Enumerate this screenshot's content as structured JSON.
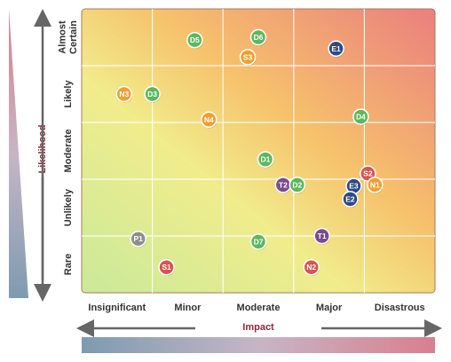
{
  "chart_data": {
    "type": "scatter",
    "title": "",
    "xlabel": "Impact",
    "ylabel": "Likelihood",
    "x_categories": [
      "Insignificant",
      "Minor",
      "Moderate",
      "Major",
      "Disastrous"
    ],
    "y_categories": [
      "Rare",
      "Unlikely",
      "Moderate",
      "Likely",
      "Almost Certain"
    ],
    "xlim": [
      0,
      5
    ],
    "ylim": [
      0,
      5
    ],
    "grid": true,
    "legend": "none",
    "colors": {
      "green": "#5cb85c",
      "orange": "#f0a030",
      "red": "#d9534f",
      "navy": "#2e4a86",
      "purple": "#7b4a8f",
      "gray": "#8e8e8e"
    },
    "points": [
      {
        "label": "D5",
        "x": 1.6,
        "y": 4.45,
        "color": "green"
      },
      {
        "label": "D6",
        "x": 2.5,
        "y": 4.5,
        "color": "green"
      },
      {
        "label": "S3",
        "x": 2.35,
        "y": 4.15,
        "color": "orange"
      },
      {
        "label": "E1",
        "x": 3.6,
        "y": 4.3,
        "color": "navy"
      },
      {
        "label": "N3",
        "x": 0.6,
        "y": 3.5,
        "color": "orange"
      },
      {
        "label": "D3",
        "x": 1.0,
        "y": 3.5,
        "color": "green"
      },
      {
        "label": "N4",
        "x": 1.8,
        "y": 3.05,
        "color": "orange"
      },
      {
        "label": "D4",
        "x": 3.95,
        "y": 3.1,
        "color": "green"
      },
      {
        "label": "D1",
        "x": 2.6,
        "y": 2.35,
        "color": "green"
      },
      {
        "label": "S2",
        "x": 4.05,
        "y": 2.1,
        "color": "red"
      },
      {
        "label": "N1",
        "x": 4.15,
        "y": 1.9,
        "color": "orange"
      },
      {
        "label": "T2",
        "x": 2.85,
        "y": 1.9,
        "color": "purple"
      },
      {
        "label": "D2",
        "x": 3.05,
        "y": 1.9,
        "color": "green"
      },
      {
        "label": "E3",
        "x": 3.85,
        "y": 1.88,
        "color": "navy"
      },
      {
        "label": "E2",
        "x": 3.8,
        "y": 1.65,
        "color": "navy"
      },
      {
        "label": "P1",
        "x": 0.8,
        "y": 0.95,
        "color": "gray"
      },
      {
        "label": "D7",
        "x": 2.5,
        "y": 0.9,
        "color": "green"
      },
      {
        "label": "T1",
        "x": 3.4,
        "y": 1.0,
        "color": "purple"
      },
      {
        "label": "S1",
        "x": 1.2,
        "y": 0.45,
        "color": "red"
      },
      {
        "label": "N2",
        "x": 3.25,
        "y": 0.45,
        "color": "red"
      }
    ]
  }
}
